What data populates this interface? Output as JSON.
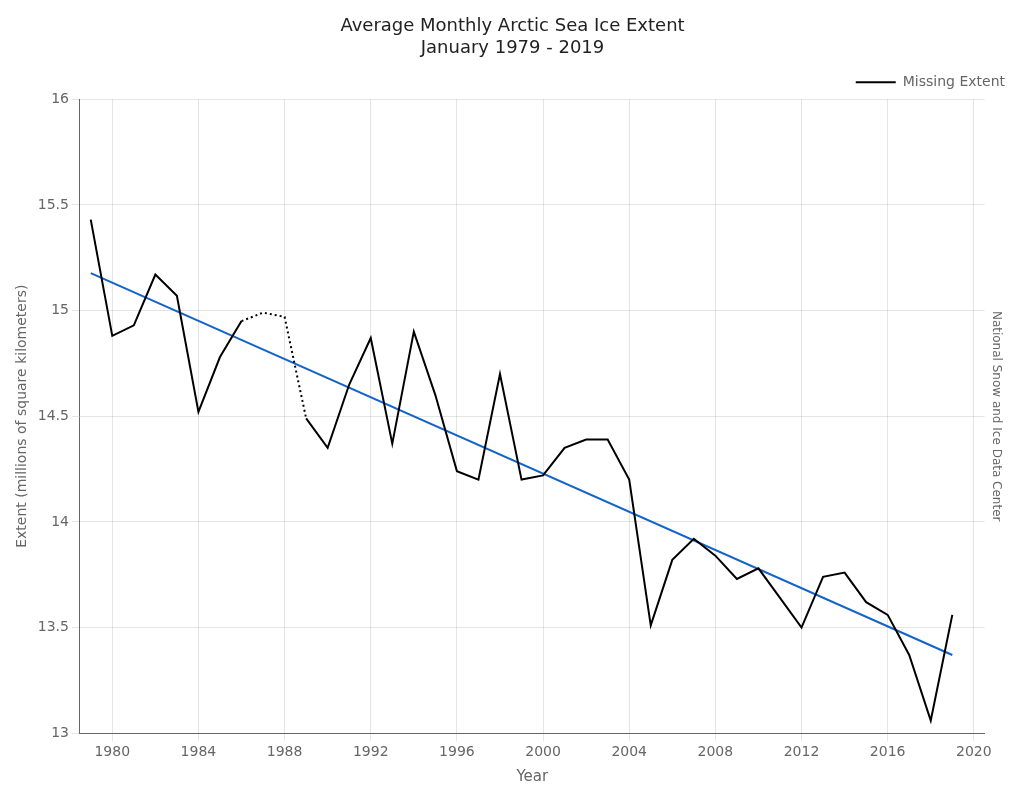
{
  "chart_data": {
    "type": "line",
    "title": "Average Monthly Arctic Sea Ice Extent",
    "subtitle": "January 1979 - 2019",
    "x_label": "Year",
    "y_label": "Extent (millions of square kilometers)",
    "annotations": [
      "National Snow and Ice Data Center"
    ],
    "x": [
      1979,
      1980,
      1981,
      1982,
      1983,
      1984,
      1985,
      1986,
      1987,
      1988,
      1989,
      1990,
      1991,
      1992,
      1993,
      1994,
      1995,
      1996,
      1997,
      1998,
      1999,
      2000,
      2001,
      2002,
      2003,
      2004,
      2005,
      2006,
      2007,
      2008,
      2009,
      2010,
      2011,
      2012,
      2013,
      2014,
      2015,
      2016,
      2017,
      2018,
      2019
    ],
    "series": [
      {
        "color": "#000000",
        "line_style": "solid",
        "values": [
          15.43,
          14.88,
          14.93,
          15.17,
          15.07,
          14.52,
          14.78,
          14.95,
          null,
          null,
          14.49,
          14.35,
          14.65,
          14.87,
          14.37,
          14.9,
          14.6,
          14.24,
          14.2,
          14.7,
          14.2,
          14.22,
          14.35,
          14.39,
          14.39,
          14.2,
          13.51,
          13.82,
          13.92,
          13.84,
          13.73,
          13.78,
          13.64,
          13.5,
          13.74,
          13.76,
          13.62,
          13.56,
          13.37,
          13.06,
          13.56
        ]
      },
      {
        "name": "Missing Extent",
        "color": "#000000",
        "line_style": "dotted",
        "values": [
          null,
          null,
          null,
          null,
          null,
          null,
          null,
          14.95,
          14.99,
          14.97,
          14.49,
          null,
          null,
          null,
          null,
          null,
          null,
          null,
          null,
          null,
          null,
          null,
          null,
          null,
          null,
          null,
          null,
          null,
          null,
          null,
          null,
          null,
          null,
          null,
          null,
          null,
          null,
          null,
          null,
          null,
          null
        ]
      },
      {
        "color": "#1464c8",
        "line_style": "solid",
        "x": [
          1979,
          2019
        ],
        "values": [
          15.1773,
          13.37
        ]
      }
    ],
    "xlim": [
      1978.5,
      2020.5
    ],
    "xticks": [
      1980,
      1984,
      1988,
      1992,
      1996,
      2000,
      2004,
      2008,
      2012,
      2016,
      2020
    ],
    "ylim": [
      13.0,
      16.0
    ],
    "yticks": [
      13,
      13.5,
      14,
      14.5,
      15,
      15.5,
      16
    ],
    "grid": true,
    "legend": "upper right"
  }
}
